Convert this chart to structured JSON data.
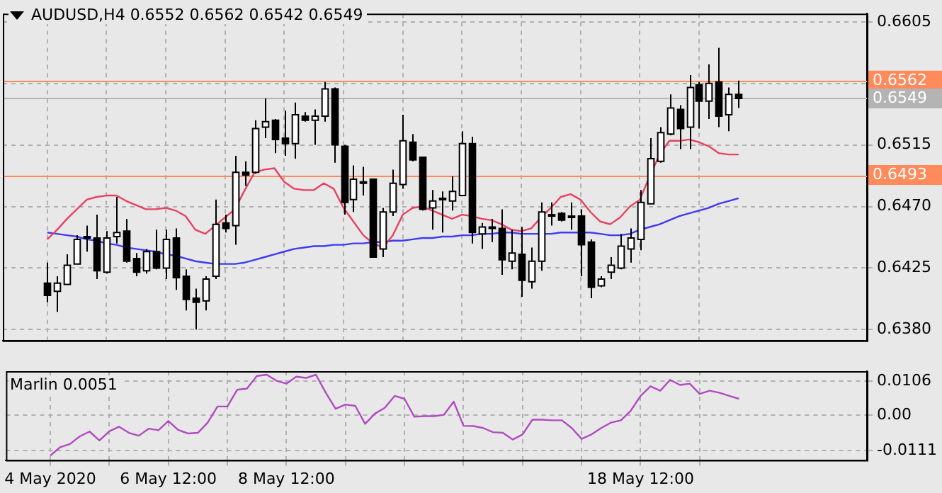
{
  "chart_data": [
    {
      "type": "candlestick",
      "title": "AUDUSD,H4 0.6552 0.6562 0.6542 0.6549",
      "categories": [
        null,
        null,
        null,
        null,
        null,
        null,
        null,
        null,
        null,
        null,
        null,
        null,
        null,
        null,
        null,
        null,
        null,
        null,
        null,
        null,
        null,
        null,
        null,
        null,
        null,
        null,
        null,
        null,
        null,
        null,
        null,
        null,
        null,
        null,
        null,
        null,
        null,
        null,
        null,
        null,
        null,
        null,
        null,
        null,
        null,
        null,
        null,
        null,
        null,
        null,
        null,
        null,
        null,
        null,
        null,
        null,
        null,
        null,
        null,
        null,
        null,
        null,
        null,
        null,
        null,
        null,
        null,
        null,
        null,
        null,
        null
      ],
      "ohlc": [
        [
          0.6414,
          0.6429,
          0.64,
          0.6405
        ],
        [
          0.6408,
          0.6419,
          0.6393,
          0.6414
        ],
        [
          0.6413,
          0.6435,
          0.6413,
          0.6427
        ],
        [
          0.6428,
          0.6449,
          0.6428,
          0.6446
        ],
        [
          0.6447,
          0.6456,
          0.6437,
          0.6448
        ],
        [
          0.6447,
          0.6464,
          0.6417,
          0.6423
        ],
        [
          0.6422,
          0.6452,
          0.6421,
          0.6447
        ],
        [
          0.6448,
          0.6477,
          0.6443,
          0.6451
        ],
        [
          0.6452,
          0.6461,
          0.6429,
          0.643
        ],
        [
          0.6432,
          0.6436,
          0.6419,
          0.6422
        ],
        [
          0.6423,
          0.6439,
          0.6421,
          0.6437
        ],
        [
          0.6437,
          0.6453,
          0.6424,
          0.6425
        ],
        [
          0.6425,
          0.6453,
          0.6417,
          0.6446
        ],
        [
          0.6447,
          0.6454,
          0.6409,
          0.6418
        ],
        [
          0.6419,
          0.6424,
          0.6394,
          0.6402
        ],
        [
          0.6403,
          0.641,
          0.638,
          0.64
        ],
        [
          0.6401,
          0.6419,
          0.6394,
          0.6417
        ],
        [
          0.6419,
          0.6475,
          0.6417,
          0.6457
        ],
        [
          0.6458,
          0.6464,
          0.6451,
          0.6454
        ],
        [
          0.6456,
          0.6507,
          0.6442,
          0.6495
        ],
        [
          0.6495,
          0.6503,
          0.6485,
          0.6493
        ],
        [
          0.6495,
          0.6533,
          0.6494,
          0.6527
        ],
        [
          0.6528,
          0.6549,
          0.652,
          0.6532
        ],
        [
          0.6533,
          0.6534,
          0.6509,
          0.6519
        ],
        [
          0.652,
          0.654,
          0.6507,
          0.6516
        ],
        [
          0.6516,
          0.6546,
          0.6505,
          0.6537
        ],
        [
          0.6536,
          0.6539,
          0.6532,
          0.6533
        ],
        [
          0.6533,
          0.6541,
          0.6515,
          0.6536
        ],
        [
          0.6536,
          0.6561,
          0.6532,
          0.6556
        ],
        [
          0.6556,
          0.6557,
          0.6502,
          0.6515
        ],
        [
          0.6514,
          0.6515,
          0.6464,
          0.6473
        ],
        [
          0.6475,
          0.65,
          0.6466,
          0.649
        ],
        [
          0.6488,
          0.6499,
          0.6478,
          0.6488
        ],
        [
          0.649,
          0.649,
          0.6433,
          0.6433
        ],
        [
          0.6439,
          0.6469,
          0.6433,
          0.6466
        ],
        [
          0.6466,
          0.6497,
          0.6463,
          0.6487
        ],
        [
          0.6486,
          0.6537,
          0.6483,
          0.6518
        ],
        [
          0.6517,
          0.6523,
          0.6503,
          0.6504
        ],
        [
          0.6506,
          0.6506,
          0.6467,
          0.6468
        ],
        [
          0.6469,
          0.6482,
          0.6453,
          0.6474
        ],
        [
          0.6476,
          0.6481,
          0.6451,
          0.6476
        ],
        [
          0.6474,
          0.6492,
          0.6467,
          0.6481
        ],
        [
          0.6478,
          0.6525,
          0.6478,
          0.6516
        ],
        [
          0.6516,
          0.6521,
          0.6443,
          0.6451
        ],
        [
          0.645,
          0.6458,
          0.6439,
          0.6455
        ],
        [
          0.6455,
          0.6461,
          0.6444,
          0.6455
        ],
        [
          0.6454,
          0.6468,
          0.642,
          0.6431
        ],
        [
          0.643,
          0.6453,
          0.6424,
          0.6436
        ],
        [
          0.6435,
          0.6455,
          0.6404,
          0.6416
        ],
        [
          0.6415,
          0.644,
          0.641,
          0.643
        ],
        [
          0.643,
          0.6473,
          0.6423,
          0.6466
        ],
        [
          0.6463,
          0.6473,
          0.6456,
          0.6464
        ],
        [
          0.6465,
          0.6466,
          0.6459,
          0.646
        ],
        [
          0.6463,
          0.6473,
          0.6453,
          0.6463
        ],
        [
          0.6463,
          0.6468,
          0.6419,
          0.6442
        ],
        [
          0.6444,
          0.6446,
          0.6403,
          0.6411
        ],
        [
          0.6412,
          0.6419,
          0.6411,
          0.6417
        ],
        [
          0.6422,
          0.6433,
          0.6417,
          0.6427
        ],
        [
          0.6425,
          0.645,
          0.6424,
          0.6441
        ],
        [
          0.6439,
          0.6454,
          0.6429,
          0.6447
        ],
        [
          0.6446,
          0.6482,
          0.6438,
          0.6473
        ],
        [
          0.6472,
          0.652,
          0.6472,
          0.6505
        ],
        [
          0.6503,
          0.6528,
          0.6502,
          0.6524
        ],
        [
          0.6523,
          0.6552,
          0.6522,
          0.6542
        ],
        [
          0.6541,
          0.6544,
          0.6512,
          0.6527
        ],
        [
          0.6528,
          0.6566,
          0.6512,
          0.6557
        ],
        [
          0.6559,
          0.6561,
          0.6527,
          0.6547
        ],
        [
          0.6547,
          0.6574,
          0.6534,
          0.656
        ],
        [
          0.6561,
          0.6586,
          0.6528,
          0.6536
        ],
        [
          0.6537,
          0.6557,
          0.6525,
          0.6552
        ],
        [
          0.6552,
          0.6562,
          0.6542,
          0.6549
        ]
      ],
      "series": [
        {
          "type": "line",
          "color": "#e8415e",
          "values": [
            0.6446,
            0.6453,
            0.6461,
            0.6468,
            0.6475,
            0.6477,
            0.6478,
            0.6478,
            0.6474,
            0.6471,
            0.6468,
            0.6468,
            0.6469,
            0.6467,
            0.6463,
            0.6453,
            0.645,
            0.6456,
            0.6462,
            0.6468,
            0.6482,
            0.6495,
            0.6497,
            0.6498,
            0.6488,
            0.6483,
            0.6482,
            0.6482,
            0.6487,
            0.6483,
            0.6469,
            0.6459,
            0.6449,
            0.6443,
            0.644,
            0.6449,
            0.6464,
            0.6469,
            0.647,
            0.6467,
            0.6464,
            0.6461,
            0.6464,
            0.6463,
            0.6461,
            0.646,
            0.6457,
            0.6453,
            0.6452,
            0.6454,
            0.6462,
            0.6469,
            0.6477,
            0.6479,
            0.6475,
            0.6466,
            0.6459,
            0.6457,
            0.6462,
            0.647,
            0.6475,
            0.6492,
            0.6508,
            0.6518,
            0.6518,
            0.6519,
            0.6517,
            0.6514,
            0.6509,
            0.6508,
            0.6508
          ]
        },
        {
          "type": "line",
          "color": "#3c3cf0",
          "values": [
            0.6451,
            0.645,
            0.6449,
            0.6448,
            0.6446,
            0.6445,
            0.6443,
            0.6442,
            0.644,
            0.6439,
            0.6438,
            0.6437,
            0.6435,
            0.6434,
            0.6432,
            0.643,
            0.6429,
            0.6428,
            0.6428,
            0.6428,
            0.6429,
            0.6431,
            0.6433,
            0.6435,
            0.6437,
            0.6439,
            0.644,
            0.6441,
            0.6441,
            0.6442,
            0.6442,
            0.6443,
            0.6443,
            0.6444,
            0.6444,
            0.6445,
            0.6445,
            0.6446,
            0.6447,
            0.6447,
            0.6448,
            0.6448,
            0.6449,
            0.6449,
            0.645,
            0.645,
            0.6451,
            0.6451,
            0.645,
            0.645,
            0.645,
            0.645,
            0.6451,
            0.6451,
            0.6451,
            0.6451,
            0.645,
            0.6449,
            0.6449,
            0.645,
            0.6453,
            0.6455,
            0.6457,
            0.646,
            0.6463,
            0.6465,
            0.6467,
            0.6469,
            0.6472,
            0.6474,
            0.6476
          ]
        }
      ],
      "ylim": [
        0.6372,
        0.6611
      ],
      "yticks": [
        0.6605,
        {
          "value": 0.656,
          "label": null
        },
        0.6515,
        {
          "value": 0.647,
          "label": "0.6470"
        },
        0.6425,
        {
          "value": 0.638,
          "label": "0.6380"
        }
      ],
      "ref_lines": [
        {
          "axis": "y",
          "value": 0.6562,
          "label": "0.6562",
          "color": "#ff8a5c"
        },
        {
          "axis": "y",
          "value": 0.6493,
          "label": "0.6493",
          "color": "#ff8a5c"
        },
        {
          "axis": "y",
          "value": 0.6549,
          "label": "0.6549",
          "color": "#b4b4b4"
        }
      ],
      "grid": true,
      "marker": "none",
      "tick_labels": "y"
    },
    {
      "type": "line",
      "title": "Marlin 0.0051",
      "categories": [
        "4 May 2020",
        null,
        null,
        null,
        null,
        null,
        null,
        null,
        null,
        null,
        null,
        null,
        "6 May 12:00",
        null,
        null,
        null,
        null,
        null,
        null,
        null,
        null,
        null,
        null,
        null,
        "8 May 12:00",
        null,
        null,
        null,
        null,
        null,
        null,
        null,
        null,
        null,
        null,
        null,
        null,
        null,
        null,
        null,
        null,
        null,
        null,
        null,
        null,
        null,
        null,
        null,
        null,
        null,
        null,
        null,
        null,
        null,
        null,
        null,
        null,
        null,
        null,
        null,
        "18 May 12:00",
        null,
        null,
        null,
        null,
        null,
        null,
        null,
        null,
        null,
        null
      ],
      "series": [
        {
          "color": "#b04cc0",
          "values": [
            -0.0126,
            -0.01,
            -0.009,
            -0.0066,
            -0.0051,
            -0.0079,
            -0.005,
            -0.0036,
            -0.0055,
            -0.0064,
            -0.0042,
            -0.0047,
            -0.0018,
            -0.0046,
            -0.0057,
            -0.0055,
            -0.0023,
            0.0027,
            0.0027,
            0.0079,
            0.0083,
            0.0122,
            0.0126,
            0.0107,
            0.0098,
            0.012,
            0.0116,
            0.0126,
            0.007,
            0.002,
            0.0033,
            0.0029,
            -0.0027,
            0.0005,
            0.0023,
            0.006,
            0.0051,
            -0.0005,
            -0.0003,
            -0.0003,
            0.0001,
            0.0042,
            -0.0033,
            -0.0034,
            -0.004,
            -0.0053,
            -0.0055,
            -0.0076,
            -0.006,
            -0.0014,
            -0.0014,
            -0.0016,
            -0.0016,
            -0.004,
            -0.0074,
            -0.006,
            -0.004,
            -0.0023,
            -0.0016,
            0.0014,
            0.006,
            0.009,
            0.0076,
            0.011,
            0.0094,
            0.0098,
            0.0066,
            0.0076,
            0.007,
            0.006,
            0.0051
          ]
        }
      ],
      "ylim": [
        -0.014,
        0.0137
      ],
      "yticks": [
        0.0106,
        {
          "value": 0,
          "label": "0.00"
        },
        -0.0111
      ],
      "grid": true,
      "marker": "none"
    }
  ]
}
